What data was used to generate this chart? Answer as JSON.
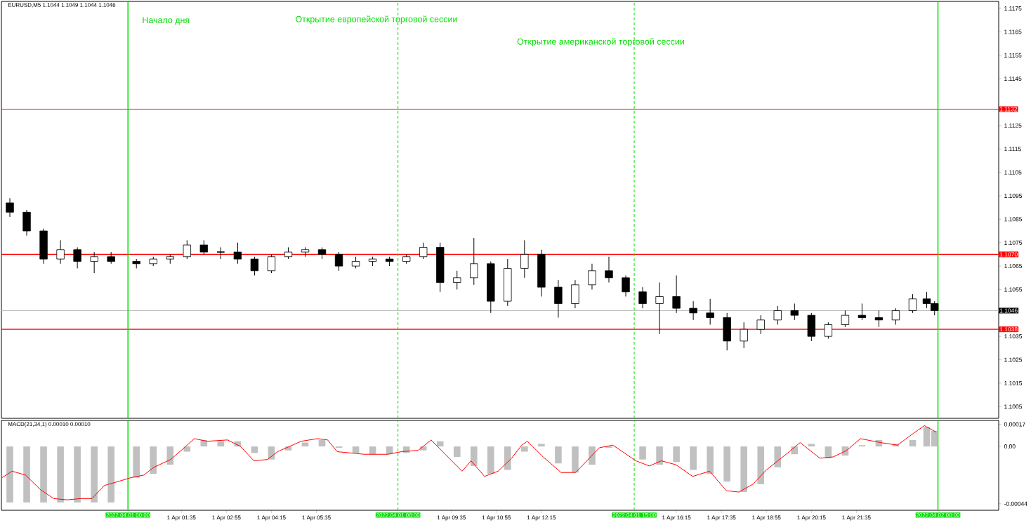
{
  "chart_data": [
    {
      "type": "candlestick",
      "title": "EURUSD,M5  1.1044 1.1049 1.1044 1.1046",
      "x": [
        "2022-03-31T20:30",
        "2022-03-31T21:00",
        "2022-03-31T21:30",
        "2022-03-31T22:00",
        "2022-03-31T22:30",
        "2022-03-31T23:00",
        "2022-03-31T23:30",
        "2022-04-01T00:15",
        "2022-04-01T00:45",
        "2022-04-01T01:15",
        "2022-04-01T01:45",
        "2022-04-01T02:15",
        "2022-04-01T02:45",
        "2022-04-01T03:15",
        "2022-04-01T03:45",
        "2022-04-01T04:15",
        "2022-04-01T04:45",
        "2022-04-01T05:15",
        "2022-04-01T05:45",
        "2022-04-01T06:15",
        "2022-04-01T06:45",
        "2022-04-01T07:15",
        "2022-04-01T07:45",
        "2022-04-01T08:15",
        "2022-04-01T08:45",
        "2022-04-01T09:15",
        "2022-04-01T09:45",
        "2022-04-01T10:15",
        "2022-04-01T10:45",
        "2022-04-01T11:15",
        "2022-04-01T11:45",
        "2022-04-01T12:15",
        "2022-04-01T12:45",
        "2022-04-01T13:15",
        "2022-04-01T13:45",
        "2022-04-01T14:15",
        "2022-04-01T14:45",
        "2022-04-01T15:15",
        "2022-04-01T15:45",
        "2022-04-01T16:15",
        "2022-04-01T16:45",
        "2022-04-01T17:15",
        "2022-04-01T17:45",
        "2022-04-01T18:15",
        "2022-04-01T18:45",
        "2022-04-01T19:15",
        "2022-04-01T19:45",
        "2022-04-01T20:15",
        "2022-04-01T20:45",
        "2022-04-01T21:15",
        "2022-04-01T21:45",
        "2022-04-01T22:15",
        "2022-04-01T22:45",
        "2022-04-01T23:15",
        "2022-04-01T23:40",
        "2022-04-01T23:54"
      ],
      "ohlc": [
        [
          1.1092,
          1.1094,
          1.1086,
          1.1088
        ],
        [
          1.1088,
          1.1089,
          1.1078,
          1.108
        ],
        [
          1.108,
          1.1081,
          1.1066,
          1.1068
        ],
        [
          1.1068,
          1.1076,
          1.1066,
          1.1072
        ],
        [
          1.1072,
          1.1073,
          1.1064,
          1.1067
        ],
        [
          1.1067,
          1.1071,
          1.1062,
          1.1069
        ],
        [
          1.1069,
          1.1071,
          1.1066,
          1.1067
        ],
        [
          1.1067,
          1.1068,
          1.1064,
          1.1066
        ],
        [
          1.1066,
          1.1069,
          1.1065,
          1.1068
        ],
        [
          1.1068,
          1.107,
          1.1066,
          1.1069
        ],
        [
          1.1069,
          1.1076,
          1.1068,
          1.1074
        ],
        [
          1.1074,
          1.1076,
          1.107,
          1.1071
        ],
        [
          1.1071,
          1.1073,
          1.1068,
          1.1071
        ],
        [
          1.1071,
          1.1075,
          1.1066,
          1.1068
        ],
        [
          1.1068,
          1.1069,
          1.1061,
          1.1063
        ],
        [
          1.1063,
          1.107,
          1.1062,
          1.1069
        ],
        [
          1.1069,
          1.1073,
          1.1068,
          1.1071
        ],
        [
          1.1071,
          1.1073,
          1.1069,
          1.1072
        ],
        [
          1.1072,
          1.1073,
          1.1068,
          1.107
        ],
        [
          1.107,
          1.1071,
          1.1063,
          1.1065
        ],
        [
          1.1065,
          1.1069,
          1.1064,
          1.1067
        ],
        [
          1.1067,
          1.1069,
          1.1065,
          1.1068
        ],
        [
          1.1068,
          1.1069,
          1.1065,
          1.1067
        ],
        [
          1.1067,
          1.107,
          1.1066,
          1.1069
        ],
        [
          1.1069,
          1.1075,
          1.1068,
          1.1073
        ],
        [
          1.1073,
          1.1075,
          1.1054,
          1.1058
        ],
        [
          1.1058,
          1.1063,
          1.1055,
          1.106
        ],
        [
          1.106,
          1.1077,
          1.1057,
          1.1066
        ],
        [
          1.1066,
          1.1067,
          1.1045,
          1.105
        ],
        [
          1.105,
          1.1068,
          1.1048,
          1.1064
        ],
        [
          1.1064,
          1.1076,
          1.106,
          1.107
        ],
        [
          1.107,
          1.1072,
          1.1052,
          1.1056
        ],
        [
          1.1056,
          1.1059,
          1.1043,
          1.1049
        ],
        [
          1.1049,
          1.1059,
          1.1047,
          1.1057
        ],
        [
          1.1057,
          1.1066,
          1.1055,
          1.1063
        ],
        [
          1.1063,
          1.1069,
          1.1058,
          1.106
        ],
        [
          1.106,
          1.1061,
          1.1052,
          1.1054
        ],
        [
          1.1054,
          1.1056,
          1.1047,
          1.1049
        ],
        [
          1.1049,
          1.1058,
          1.1036,
          1.1052
        ],
        [
          1.1052,
          1.1061,
          1.1045,
          1.1047
        ],
        [
          1.1047,
          1.105,
          1.1042,
          1.1045
        ],
        [
          1.1045,
          1.1051,
          1.104,
          1.1043
        ],
        [
          1.1043,
          1.1045,
          1.1029,
          1.1033
        ],
        [
          1.1033,
          1.1041,
          1.103,
          1.1038
        ],
        [
          1.1038,
          1.1044,
          1.1036,
          1.1042
        ],
        [
          1.1042,
          1.1048,
          1.104,
          1.1046
        ],
        [
          1.1046,
          1.1049,
          1.1042,
          1.1044
        ],
        [
          1.1044,
          1.1045,
          1.1033,
          1.1035
        ],
        [
          1.1035,
          1.1041,
          1.1034,
          1.104
        ],
        [
          1.104,
          1.1046,
          1.1039,
          1.1044
        ],
        [
          1.1044,
          1.1049,
          1.1042,
          1.1043
        ],
        [
          1.1043,
          1.1046,
          1.1039,
          1.1042
        ],
        [
          1.1042,
          1.1047,
          1.104,
          1.1046
        ],
        [
          1.1046,
          1.1053,
          1.1045,
          1.1051
        ],
        [
          1.1051,
          1.1054,
          1.1047,
          1.1049
        ],
        [
          1.1049,
          1.105,
          1.1044,
          1.1046
        ]
      ],
      "xlim": [
        "2022-03-31T20:15",
        "2022-04-02T01:48"
      ],
      "ylim": [
        1.1,
        1.1178
      ],
      "yticks": [
        1.1005,
        1.1015,
        1.1025,
        1.1035,
        1.1055,
        1.1065,
        1.1075,
        1.1085,
        1.1095,
        1.1105,
        1.1115,
        1.1125,
        1.1145,
        1.1155,
        1.1165,
        1.1175
      ],
      "tick_labels": "y",
      "ref_lines": [
        {
          "axis": "y",
          "value": 1.1132,
          "label": "1.1132",
          "color": "#ff0000"
        },
        {
          "axis": "y",
          "value": 1.107,
          "label": "1.1070",
          "color": "#ff0000"
        },
        {
          "axis": "y",
          "value": 1.1046,
          "label": "1.1046",
          "color": "#c0c0c0"
        },
        {
          "axis": "y",
          "value": 1.1038,
          "label": "1.1038",
          "color": "#ff0000"
        },
        {
          "axis": "x",
          "value": "2022-04-01T00:00",
          "color": "#00e000"
        },
        {
          "axis": "x",
          "value": "2022-04-01T08:00",
          "color": "#00e000",
          "line_style": "dashed"
        },
        {
          "axis": "x",
          "value": "2022-04-01T15:00",
          "color": "#00e000",
          "line_style": "dashed"
        },
        {
          "axis": "x",
          "value": "2022-04-02T00:00",
          "color": "#00e000"
        }
      ],
      "annotations": [
        "Начало дня",
        "Открытие европейской торговой сессии",
        "Открытие американской торговой сессии"
      ]
    },
    {
      "type": "bar",
      "title": "MACD(21,34,1) 0.00010 0.00010",
      "x": [
        "2022-03-31T20:30",
        "2022-03-31T21:00",
        "2022-03-31T21:30",
        "2022-03-31T22:00",
        "2022-03-31T22:30",
        "2022-03-31T23:00",
        "2022-03-31T23:30",
        "2022-04-01T00:15",
        "2022-04-01T00:45",
        "2022-04-01T01:15",
        "2022-04-01T01:45",
        "2022-04-01T02:15",
        "2022-04-01T02:45",
        "2022-04-01T03:15",
        "2022-04-01T03:45",
        "2022-04-01T04:15",
        "2022-04-01T04:45",
        "2022-04-01T05:15",
        "2022-04-01T05:45",
        "2022-04-01T06:15",
        "2022-04-01T06:45",
        "2022-04-01T07:15",
        "2022-04-01T07:45",
        "2022-04-01T08:15",
        "2022-04-01T08:45",
        "2022-04-01T09:15",
        "2022-04-01T09:45",
        "2022-04-01T10:15",
        "2022-04-01T10:45",
        "2022-04-01T11:15",
        "2022-04-01T11:45",
        "2022-04-01T12:15",
        "2022-04-01T12:45",
        "2022-04-01T13:15",
        "2022-04-01T13:45",
        "2022-04-01T14:15",
        "2022-04-01T14:45",
        "2022-04-01T15:15",
        "2022-04-01T15:45",
        "2022-04-01T16:15",
        "2022-04-01T16:45",
        "2022-04-01T17:15",
        "2022-04-01T17:45",
        "2022-04-01T18:15",
        "2022-04-01T18:45",
        "2022-04-01T19:15",
        "2022-04-01T19:45",
        "2022-04-01T20:15",
        "2022-04-01T20:45",
        "2022-04-01T21:15",
        "2022-04-01T21:45",
        "2022-04-01T22:15",
        "2022-04-01T22:45",
        "2022-04-01T23:15",
        "2022-04-01T23:40",
        "2022-04-01T23:54"
      ],
      "series": [
        {
          "type": "bar",
          "color": "#c0c0c0",
          "values": [
            -0.00043,
            -0.00043,
            -0.00043,
            -0.00043,
            -0.00043,
            -0.00043,
            -0.00043,
            -0.00024,
            -0.00021,
            -0.00014,
            -4e-05,
            5e-05,
            4e-05,
            4e-05,
            -5e-05,
            -0.0001,
            -3e-05,
            3e-05,
            5e-05,
            -1e-05,
            -5e-05,
            -6e-05,
            -6e-05,
            -5e-05,
            -3e-05,
            4e-05,
            -8e-05,
            -0.00015,
            -0.00021,
            -0.00018,
            -4e-05,
            2e-05,
            -0.00013,
            -0.0002,
            -0.00014,
            -1e-05,
            0.0,
            -0.0001,
            -0.00014,
            -0.00012,
            -0.00018,
            -0.00021,
            -0.00027,
            -0.00035,
            -0.00029,
            -0.00016,
            -6e-05,
            2e-05,
            -9e-05,
            -7e-05,
            1e-05,
            5e-05,
            2e-05,
            5e-05,
            0.00015,
            0.00012
          ]
        },
        {
          "type": "line",
          "color": "#ff0000",
          "x": [
            "2022-03-31T20:16",
            "2022-03-31T20:34",
            "2022-03-31T20:58",
            "2022-03-31T21:24",
            "2022-03-31T21:48",
            "2022-03-31T22:12",
            "2022-03-31T22:36",
            "2022-03-31T22:56",
            "2022-03-31T23:18",
            "2022-03-31T23:42",
            "2022-04-01T00:05",
            "2022-04-01T00:28",
            "2022-04-01T00:46",
            "2022-04-01T01:16",
            "2022-04-01T01:40",
            "2022-04-01T01:58",
            "2022-04-01T02:21",
            "2022-04-01T02:57",
            "2022-04-01T03:20",
            "2022-04-01T03:44",
            "2022-04-01T04:08",
            "2022-04-01T04:26",
            "2022-04-01T05:08",
            "2022-04-01T05:37",
            "2022-04-01T05:55",
            "2022-04-01T06:12",
            "2022-04-01T07:00",
            "2022-04-01T07:42",
            "2022-04-01T08:06",
            "2022-04-01T08:36",
            "2022-04-01T08:59",
            "2022-04-01T09:24",
            "2022-04-01T09:54",
            "2022-04-01T10:10",
            "2022-04-01T10:34",
            "2022-04-01T10:58",
            "2022-04-01T11:22",
            "2022-04-01T11:40",
            "2022-04-01T11:50",
            "2022-04-01T12:18",
            "2022-04-01T12:50",
            "2022-04-01T13:16",
            "2022-04-01T13:58",
            "2022-04-01T14:22",
            "2022-04-01T15:03",
            "2022-04-01T15:27",
            "2022-04-01T15:48",
            "2022-04-01T16:14",
            "2022-04-01T16:44",
            "2022-04-01T17:14",
            "2022-04-01T17:44",
            "2022-04-01T18:06",
            "2022-04-01T18:31",
            "2022-04-01T18:55",
            "2022-04-01T19:30",
            "2022-04-01T19:55",
            "2022-04-01T20:30",
            "2022-04-01T20:54",
            "2022-04-01T21:18",
            "2022-04-01T21:42",
            "2022-04-01T22:18",
            "2022-04-01T22:48",
            "2022-04-01T23:16",
            "2022-04-01T23:36",
            "2022-04-01T23:57"
          ],
          "values": [
            -0.00024,
            -0.00019,
            -0.00022,
            -0.00033,
            -0.0004,
            -0.00041,
            -0.0004,
            -0.0004,
            -0.0003,
            -0.00027,
            -0.00024,
            -0.00022,
            -0.00016,
            -0.0001,
            -1e-05,
            6e-05,
            4e-05,
            5e-05,
            0.0,
            -0.00011,
            -0.0001,
            -4e-05,
            4e-05,
            6e-05,
            5e-05,
            -4e-05,
            -6e-05,
            -6e-05,
            -4e-05,
            -3e-05,
            5e-05,
            -6e-05,
            -0.00019,
            -0.00011,
            -0.00023,
            -0.00019,
            -9e-05,
            1e-05,
            4e-05,
            -8e-05,
            -0.0002,
            -0.0002,
            -1e-05,
            1e-05,
            -0.00011,
            -0.00015,
            -0.00011,
            -0.00014,
            -0.00023,
            -0.00019,
            -0.00034,
            -0.00035,
            -0.00029,
            -0.00018,
            -6e-05,
            3e-05,
            -9e-05,
            -8e-05,
            -3e-05,
            6e-05,
            3e-05,
            1e-05,
            0.0001,
            0.00016,
            0.00011
          ]
        }
      ],
      "xlim": [
        "2022-03-31T20:15",
        "2022-04-02T01:48"
      ],
      "ylim": [
        -0.00049,
        0.0002
      ],
      "xticks": [
        {
          "value": "2022-04-01T01:35",
          "label": "1 Apr 01:35"
        },
        {
          "value": "2022-04-01T02:55",
          "label": "1 Apr 02:55"
        },
        {
          "value": "2022-04-01T04:15",
          "label": "1 Apr 04:15"
        },
        {
          "value": "2022-04-01T05:35",
          "label": "1 Apr 05:35"
        },
        {
          "value": "2022-04-01T09:35",
          "label": "1 Apr 09:35"
        },
        {
          "value": "2022-04-01T10:55",
          "label": "1 Apr 10:55"
        },
        {
          "value": "2022-04-01T12:15",
          "label": "1 Apr 12:15"
        },
        {
          "value": "2022-04-01T16:15",
          "label": "1 Apr 16:15"
        },
        {
          "value": "2022-04-01T17:35",
          "label": "1 Apr 17:35"
        },
        {
          "value": "2022-04-01T18:55",
          "label": "1 Apr 18:55"
        },
        {
          "value": "2022-04-01T20:15",
          "label": "1 Apr 20:15"
        },
        {
          "value": "2022-04-01T21:35",
          "label": "1 Apr 21:35"
        }
      ],
      "yticks": [
        0.00017,
        {
          "value": 0,
          "label": "0.00"
        },
        -0.00044
      ],
      "ref_lines": [
        {
          "axis": "x",
          "value": "2022-04-01T00:00",
          "label": "2022.04.01 00:00",
          "color": "#00e000"
        },
        {
          "axis": "x",
          "value": "2022-04-01T08:00",
          "label": "2022.04.01 08:00",
          "color": "#00e000",
          "line_style": "dashed"
        },
        {
          "axis": "x",
          "value": "2022-04-01T15:00",
          "label": "2022.04.01 15:00",
          "color": "#00e000",
          "line_style": "dashed"
        },
        {
          "axis": "x",
          "value": "2022-04-02T00:00",
          "label": "2022.04.02 00:00",
          "color": "#00e000"
        }
      ]
    }
  ]
}
